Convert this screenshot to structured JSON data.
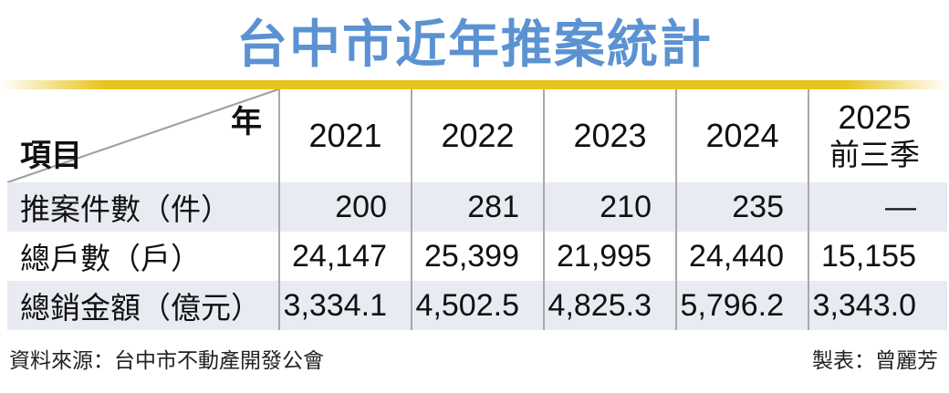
{
  "title": "台中市近年推案統計",
  "colors": {
    "title_blue": "#5b92d2",
    "bar_yellow": "#e8c41a",
    "stripe_bg": "#e9ebf3",
    "grid_line": "#a9a9a9",
    "text": "#111111"
  },
  "table": {
    "corner": {
      "top_right": "年",
      "bottom_left": "項目"
    },
    "columns": [
      {
        "label": "2021",
        "sublabel": ""
      },
      {
        "label": "2022",
        "sublabel": ""
      },
      {
        "label": "2023",
        "sublabel": ""
      },
      {
        "label": "2024",
        "sublabel": ""
      },
      {
        "label": "2025",
        "sublabel": "前三季"
      }
    ],
    "rows": [
      {
        "label": "推案件數（件）",
        "values": [
          "200",
          "281",
          "210",
          "235",
          "—"
        ]
      },
      {
        "label": "總戶數（戶）",
        "values": [
          "24,147",
          "25,399",
          "21,995",
          "24,440",
          "15,155"
        ]
      },
      {
        "label": "總銷金額（億元）",
        "values": [
          "3,334.1",
          "4,502.5",
          "4,825.3",
          "5,796.2",
          "3,343.0"
        ]
      }
    ]
  },
  "footer": {
    "source": "資料來源：台中市不動產開發公會",
    "credit": "製表：曾麗芳"
  },
  "chart_data": {
    "type": "table",
    "title": "台中市近年推案統計",
    "categories": [
      "2021",
      "2022",
      "2023",
      "2024",
      "2025前三季"
    ],
    "series": [
      {
        "name": "推案件數（件）",
        "values": [
          200,
          281,
          210,
          235,
          null
        ]
      },
      {
        "name": "總戶數（戶）",
        "values": [
          24147,
          25399,
          21995,
          24440,
          15155
        ]
      },
      {
        "name": "總銷金額（億元）",
        "values": [
          3334.1,
          4502.5,
          4825.3,
          5796.2,
          3343.0
        ]
      }
    ],
    "notes": "2025前三季 推案件數 shown as dash (not available); source 台中市不動產開發公會; table by 曾麗芳"
  }
}
